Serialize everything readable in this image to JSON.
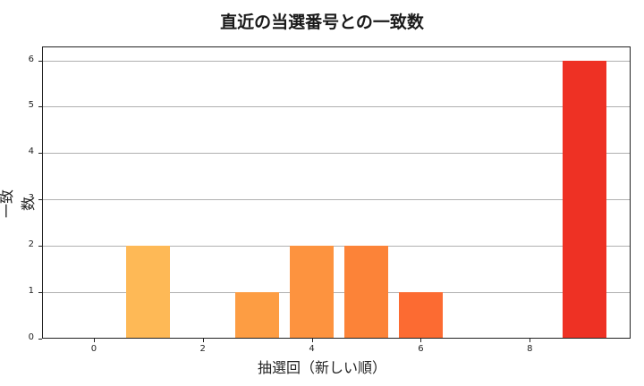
{
  "chart_data": {
    "type": "bar",
    "title": "直近の当選番号との一致数",
    "xlabel": "抽選回（新しい順）",
    "ylabel": "一致数",
    "x": [
      0,
      1,
      2,
      3,
      4,
      5,
      6,
      7,
      8,
      9
    ],
    "values": [
      0,
      2,
      0,
      1,
      2,
      2,
      1,
      0,
      0,
      6
    ],
    "colors": [
      "#ffd27a",
      "#feb956",
      "#fead4f",
      "#fd9d43",
      "#fd933f",
      "#fc8338",
      "#fc6b32",
      "#f5552c",
      "#f04128",
      "#ee3124"
    ],
    "xticks": [
      0,
      2,
      4,
      6,
      8
    ],
    "yticks": [
      0,
      1,
      2,
      3,
      4,
      5,
      6
    ],
    "xlim": [
      -0.95,
      9.85
    ],
    "ylim": [
      0,
      6.3
    ],
    "grid": "y"
  }
}
